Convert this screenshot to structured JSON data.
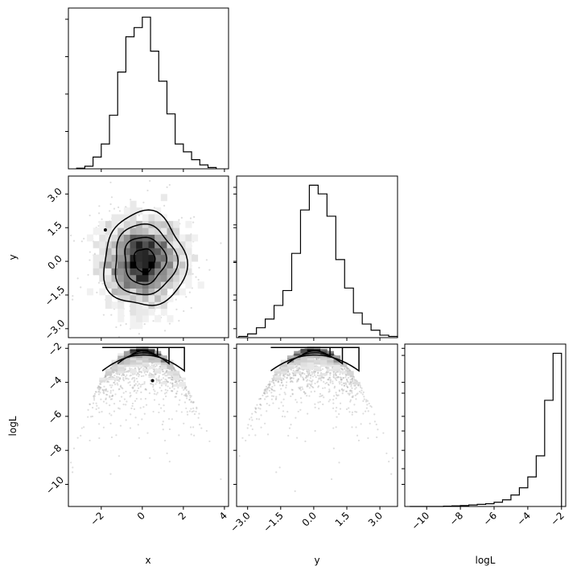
{
  "chart_data": {
    "type": "corner",
    "parameters": [
      "x",
      "y",
      "logL"
    ],
    "axis_labels": {
      "x": "x",
      "y": "y",
      "logL": "logL"
    },
    "colors": {
      "line": "#000000",
      "points": "#9e9e9e",
      "background": "#ffffff"
    },
    "panels": [
      {
        "id": "hist-x",
        "type": "histogram-step",
        "param": "x",
        "xlim": [
          -3.6,
          4.2
        ],
        "bin_edges": [
          -3.2,
          -2.8,
          -2.4,
          -2.0,
          -1.6,
          -1.2,
          -0.8,
          -0.4,
          0.0,
          0.4,
          0.8,
          1.2,
          1.6,
          2.0,
          2.4,
          2.8,
          3.2,
          3.6
        ],
        "counts": [
          1,
          4,
          18,
          38,
          82,
          148,
          202,
          216,
          232,
          180,
          134,
          84,
          38,
          26,
          14,
          6,
          2
        ]
      },
      {
        "id": "scatter-x-y",
        "type": "2d-density",
        "xparam": "x",
        "yparam": "y",
        "xlim": [
          -3.6,
          4.2
        ],
        "ylim": [
          -3.4,
          3.8
        ],
        "contour_levels": [
          0.5,
          1.0,
          1.5,
          2.0
        ],
        "outliers": [
          [
            -1.8,
            1.4
          ]
        ]
      },
      {
        "id": "hist-y",
        "type": "histogram-step",
        "param": "y",
        "xlim": [
          -3.5,
          3.8
        ],
        "bin_edges": [
          -3.4,
          -3.0,
          -2.6,
          -2.2,
          -1.8,
          -1.4,
          -1.0,
          -0.6,
          -0.2,
          0.2,
          0.6,
          1.0,
          1.4,
          1.8,
          2.2,
          2.6,
          3.0,
          3.4,
          3.8
        ],
        "counts": [
          2,
          6,
          16,
          30,
          52,
          76,
          136,
          206,
          246,
          232,
          196,
          126,
          80,
          40,
          22,
          12,
          4,
          2
        ]
      },
      {
        "id": "scatter-x-logL",
        "type": "2d-density",
        "xparam": "x",
        "yparam": "logL",
        "xlim": [
          -3.6,
          4.2
        ],
        "ylim": [
          -11.3,
          -1.75
        ],
        "outliers": [
          [
            0.5,
            -3.9
          ]
        ]
      },
      {
        "id": "scatter-y-logL",
        "type": "2d-density",
        "xparam": "y",
        "yparam": "logL",
        "xlim": [
          -3.5,
          3.8
        ],
        "ylim": [
          -11.3,
          -1.75
        ]
      },
      {
        "id": "hist-logL",
        "type": "histogram-step",
        "param": "logL",
        "xlim": [
          -11.3,
          -1.75
        ],
        "bin_edges": [
          -11.0,
          -10.5,
          -10.0,
          -9.5,
          -9.0,
          -8.5,
          -8.0,
          -7.5,
          -7.0,
          -6.5,
          -6.0,
          -5.5,
          -5.0,
          -4.5,
          -4.0,
          -3.5,
          -3.0,
          -2.5,
          -2.0
        ],
        "counts": [
          0,
          0,
          0,
          0,
          1,
          2,
          3,
          5,
          7,
          9,
          14,
          22,
          38,
          62,
          98,
          168,
          352,
          508
        ]
      }
    ],
    "ticks": {
      "x": {
        "values": [
          -2,
          0,
          2,
          4
        ],
        "labels": [
          "−2",
          "0",
          "2",
          "4"
        ]
      },
      "y": {
        "values": [
          -3.0,
          -1.5,
          0.0,
          1.5,
          3.0
        ],
        "labels": [
          "−3.0",
          "−1.5",
          "0.0",
          "1.5",
          "3.0"
        ]
      },
      "logL": {
        "values": [
          -10,
          -8,
          -6,
          -4,
          -2
        ],
        "labels": [
          "−10",
          "−8",
          "−6",
          "−4",
          "−2"
        ]
      }
    }
  }
}
